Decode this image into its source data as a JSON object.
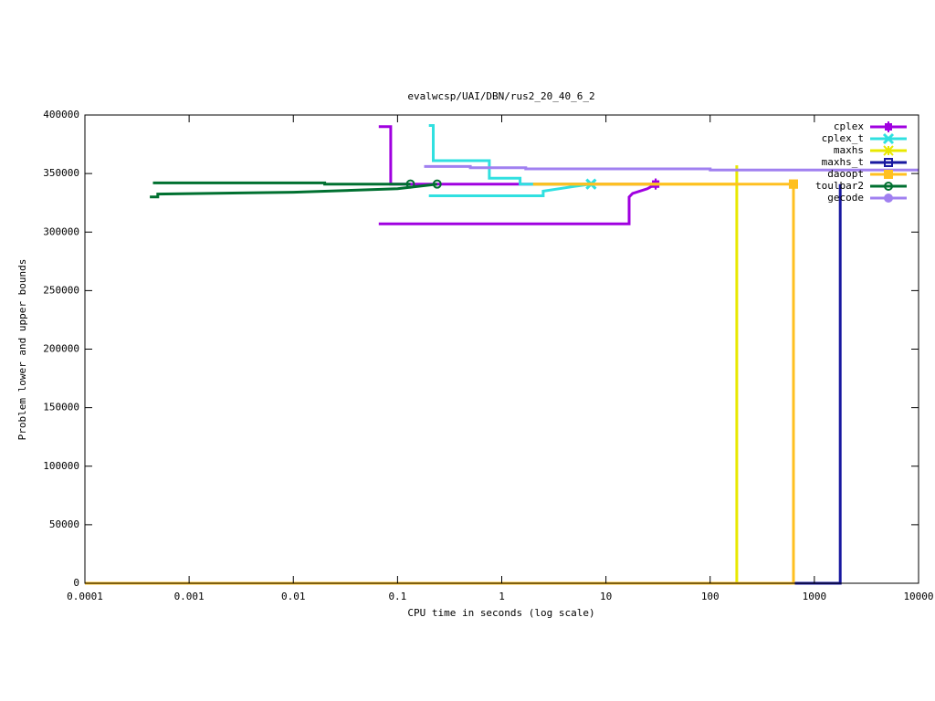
{
  "chart_data": {
    "type": "line",
    "title": "evalwcsp/UAI/DBN/rus2_20_40_6_2",
    "x_label": "CPU time in seconds (log scale)",
    "y_label": "Problem lower and upper bounds",
    "x_log_scale": true,
    "xlim": [
      0.0001,
      10000
    ],
    "xticks": [
      0.0001,
      0.001,
      0.01,
      0.1,
      1,
      10,
      100,
      1000,
      10000
    ],
    "ylim": [
      0,
      400000
    ],
    "yticks": [
      0,
      50000,
      100000,
      150000,
      200000,
      250000,
      300000,
      350000,
      400000
    ],
    "grid": false,
    "legend_position": "top-right",
    "series": [
      {
        "name": "cplex",
        "color": "#a000e0",
        "marker": "plus-square",
        "marker_on_data": true,
        "x": [
          0.066,
          0.086,
          0.086,
          30,
          null,
          0.066,
          16.7,
          16.7,
          18,
          25,
          30
        ],
        "values": [
          390000,
          390000,
          341000,
          341000,
          null,
          307000,
          307000,
          330000,
          333000,
          337000,
          341000
        ]
      },
      {
        "name": "cplex_t",
        "color": "#30e0e0",
        "marker": "cross",
        "marker_on_data": true,
        "x": [
          0.2,
          0.22,
          0.22,
          0.76,
          0.76,
          1.5,
          1.5,
          7.2,
          null,
          0.2,
          2.5,
          2.5,
          5,
          7.2
        ],
        "values": [
          391000,
          391000,
          361000,
          361000,
          346000,
          346000,
          341000,
          341000,
          null,
          331000,
          331000,
          335000,
          339000,
          341000
        ]
      },
      {
        "name": "maxhs",
        "color": "#e8e800",
        "marker": "star",
        "marker_on_data": false,
        "x": [
          2,
          180,
          null,
          180,
          180,
          null,
          0.0001,
          180
        ],
        "values": [
          341000,
          341000,
          null,
          357000,
          0,
          null,
          0,
          0
        ]
      },
      {
        "name": "maxhs_t",
        "color": "#1818a0",
        "marker": "open-square",
        "marker_on_data": false,
        "x": [
          0.0001,
          1770,
          1770
        ],
        "values": [
          0,
          0,
          341000
        ]
      },
      {
        "name": "daoopt",
        "color": "#ffc020",
        "marker": "filled-square",
        "marker_on_data": true,
        "x": [
          2,
          630,
          null,
          0.0001,
          630,
          630
        ],
        "values": [
          341000,
          341000,
          null,
          0,
          0,
          341000
        ]
      },
      {
        "name": "toulbar2",
        "color": "#007030",
        "marker": "open-circle",
        "marker_on_data": true,
        "x": [
          0.00045,
          0.02,
          0.02,
          0.133,
          null,
          0.00042,
          0.0005,
          0.0005,
          0.01,
          0.1,
          0.24
        ],
        "values": [
          342000,
          342000,
          341000,
          341000,
          null,
          330000,
          330000,
          332500,
          334000,
          337000,
          341000
        ]
      },
      {
        "name": "gecode",
        "color": "#a080f0",
        "marker": "filled-circle",
        "marker_on_data": false,
        "x": [
          0.18,
          0.5,
          0.5,
          1.7,
          1.7,
          100,
          100,
          10000
        ],
        "values": [
          356000,
          356000,
          355000,
          355000,
          354000,
          354000,
          353000,
          353000
        ]
      }
    ]
  }
}
